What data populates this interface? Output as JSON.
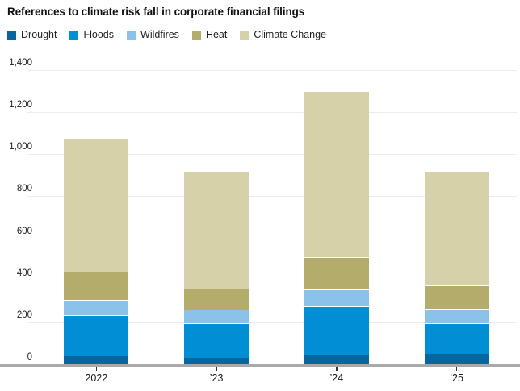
{
  "chart_data": {
    "type": "bar",
    "stacked": true,
    "title": "References to climate risk fall in corporate financial filings",
    "categories": [
      "2022",
      "’23",
      "’24",
      "’25"
    ],
    "series": [
      {
        "name": "Drought",
        "color": "#06679e",
        "values": [
          40,
          30,
          45,
          50
        ]
      },
      {
        "name": "Floods",
        "color": "#008ed4",
        "values": [
          195,
          165,
          230,
          145
        ]
      },
      {
        "name": "Wildfires",
        "color": "#8bc2e9",
        "values": [
          70,
          65,
          80,
          70
        ]
      },
      {
        "name": "Heat",
        "color": "#b3ac6b",
        "values": [
          135,
          100,
          155,
          110
        ]
      },
      {
        "name": "Climate Change",
        "color": "#d6d1a8",
        "values": [
          635,
          560,
          790,
          545
        ]
      }
    ],
    "totals": [
      1075,
      920,
      1300,
      920
    ],
    "xlabel": "",
    "ylabel": "",
    "ylim": [
      0,
      1400
    ],
    "ytick_step": 200,
    "ytick_labels": [
      "0",
      "200",
      "400",
      "600",
      "800",
      "1,000",
      "1,200",
      "1,400"
    ],
    "grid": true,
    "legend_position": "top-left",
    "axis_colors": {
      "gridline": "#ececec",
      "baseline": "#a9a9a9",
      "tick": "#333333",
      "text": "#222222"
    }
  }
}
